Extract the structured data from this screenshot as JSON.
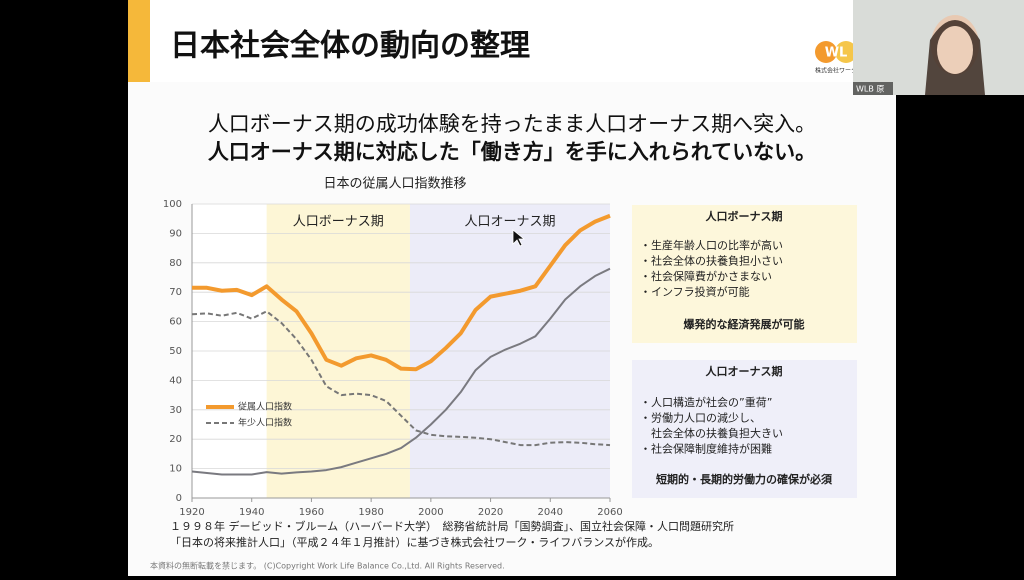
{
  "slide": {
    "title": "日本社会全体の動向の整理",
    "logo": "WL",
    "logo_sub": "株式会社ワーク・ライフ",
    "webcam_label": "WLB 原",
    "headline": [
      "人口ボーナス期の成功体験を持ったまま人口オーナス期へ突入。",
      "人口オーナス期に対応した「働き方」を手に入れられていない。"
    ],
    "boxes": [
      {
        "title": "人口ボーナス期",
        "items": [
          "・生産年齢人口の比率が高い",
          "・社会全体の扶養負担小さい",
          "・社会保障費がかさまない",
          "・インフラ投資が可能"
        ],
        "conclusion": "爆発的な経済発展が可能"
      },
      {
        "title": "人口オーナス期",
        "items": [
          "・人口構造が社会の”重荷”",
          "・労働力人口の減少し、",
          "　社会全体の扶養負担大きい",
          "・社会保障制度維持が困難"
        ],
        "conclusion": "短期的・長期的労働力の確保が必須"
      }
    ],
    "source": [
      "１９９８年 デービッド・ブルーム（ハーバード大学）　総務省統計局「国勢調査」、国立社会保障・人口問題研究所",
      "「日本の将来推計人口」（平成２４年１月推計）に基づき株式会社ワーク・ライフバランスが作成。"
    ],
    "copyright": "本資料の無断転載を禁じます。 (C)Copyright  Work Life Balance Co.,Ltd. All Rights Reserved."
  },
  "chart_data": {
    "type": "line",
    "title": "日本の従属人口指数推移",
    "x": [
      1920,
      1925,
      1930,
      1935,
      1940,
      1945,
      1950,
      1955,
      1960,
      1965,
      1970,
      1975,
      1980,
      1985,
      1990,
      1995,
      2000,
      2005,
      2010,
      2015,
      2020,
      2025,
      2030,
      2035,
      2040,
      2045,
      2050,
      2055,
      2060
    ],
    "series": [
      {
        "name": "従属人口指数",
        "color": "#f39a2e",
        "values": [
          71.5,
          71.5,
          70.5,
          70.8,
          69,
          72,
          67.5,
          63.5,
          56,
          47,
          45,
          47.5,
          48.5,
          47,
          44,
          43.8,
          46.5,
          51,
          56,
          64,
          68.5,
          69.5,
          70.5,
          72,
          79,
          86,
          91,
          94,
          96
        ]
      },
      {
        "name": "年少人口指数",
        "color": "#777777",
        "dashed": true,
        "values": [
          62.5,
          62.8,
          62,
          63,
          61,
          63.5,
          59.5,
          54,
          47,
          38,
          35,
          35.5,
          35,
          33,
          28,
          23,
          21.5,
          21,
          20.8,
          20.5,
          20,
          19,
          18,
          18,
          18.8,
          19,
          18.8,
          18.3,
          18
        ]
      },
      {
        "color": "#7a7a80",
        "values": [
          9,
          8.5,
          8,
          8,
          8,
          8.8,
          8.3,
          8.7,
          9,
          9.5,
          10.5,
          12,
          13.5,
          15,
          17,
          20.5,
          25,
          30,
          36,
          43.5,
          48,
          50.5,
          52.5,
          55,
          61,
          67.5,
          72,
          75.5,
          78
        ]
      }
    ],
    "bands": [
      {
        "label": "人口ボーナス期",
        "from": 1945,
        "to": 1993,
        "color": "#fdf6d6"
      },
      {
        "label": "人口オーナス期",
        "from": 1993,
        "to": 2060,
        "color": "#ececf8"
      }
    ],
    "xlim": [
      1920,
      2060
    ],
    "xticks": [
      1920,
      1940,
      1960,
      1980,
      2000,
      2020,
      2040,
      2060
    ],
    "ylim": [
      0,
      100
    ],
    "yticks": [
      0,
      10,
      20,
      30,
      40,
      50,
      60,
      70,
      80,
      90,
      100
    ],
    "grid": true
  }
}
